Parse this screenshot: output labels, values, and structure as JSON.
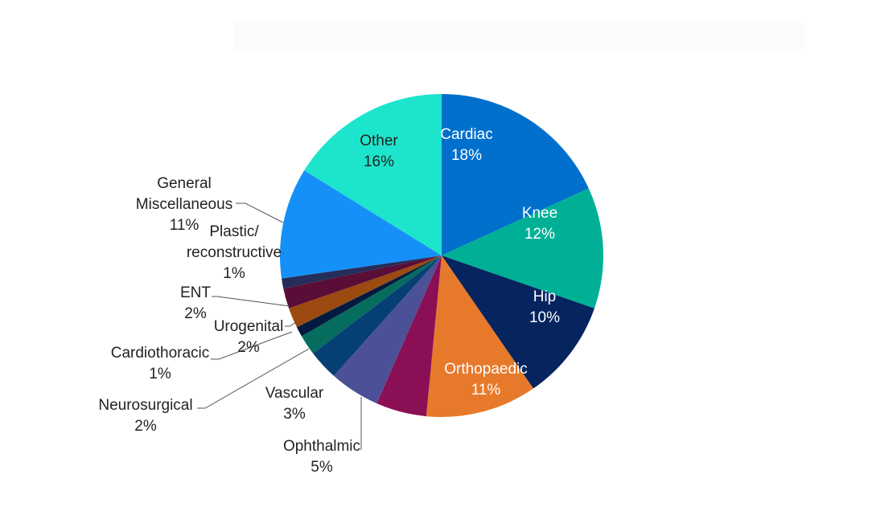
{
  "chart_data": {
    "type": "pie",
    "title": "",
    "slices": [
      {
        "label": "Cardiac",
        "value": 18,
        "color": "#0070cc"
      },
      {
        "label": "Knee",
        "value": 12,
        "color": "#00b096"
      },
      {
        "label": "Hip",
        "value": 10,
        "color": "#06245e"
      },
      {
        "label": "Orthopaedic",
        "value": 11,
        "color": "#e7792b"
      },
      {
        "label": "",
        "value": 5,
        "color": "#8b0f55"
      },
      {
        "label": "Ophthalmic",
        "value": 5,
        "color": "#4c5096"
      },
      {
        "label": "Vascular",
        "value": 3,
        "color": "#063f74"
      },
      {
        "label": "Neurosurgical",
        "value": 2,
        "color": "#066c5e"
      },
      {
        "label": "Cardiothoracic",
        "value": 1,
        "color": "#031a40"
      },
      {
        "label": "Urogenital",
        "value": 2,
        "color": "#9c4a10"
      },
      {
        "label": "ENT",
        "value": 2,
        "color": "#5a0d36"
      },
      {
        "label": "Plastic/ reconstructive",
        "value": 1,
        "color": "#252d5a"
      },
      {
        "label": "General Miscellaneous",
        "value": 11,
        "color": "#1690f9"
      },
      {
        "label": "Other",
        "value": 16,
        "color": "#1de5cd"
      }
    ],
    "labels": [
      {
        "lines": [
          "Cardiac",
          "18%"
        ]
      },
      {
        "lines": [
          "Knee",
          "12%"
        ]
      },
      {
        "lines": [
          "Hip",
          "10%"
        ]
      },
      {
        "lines": [
          "Orthopaedic",
          "11%"
        ]
      },
      {
        "lines": [
          "Ophthalmic",
          "5%"
        ]
      },
      {
        "lines": [
          "Vascular",
          "3%"
        ]
      },
      {
        "lines": [
          "Neurosurgical",
          "2%"
        ]
      },
      {
        "lines": [
          "Cardiothoracic",
          "1%"
        ]
      },
      {
        "lines": [
          "Urogenital",
          "2%"
        ]
      },
      {
        "lines": [
          "ENT",
          "2%"
        ]
      },
      {
        "lines": [
          "Plastic/",
          "reconstructive",
          "1%"
        ]
      },
      {
        "lines": [
          "General",
          "Miscellaneous",
          "11%"
        ]
      },
      {
        "lines": [
          "Other",
          "16%"
        ]
      }
    ]
  }
}
